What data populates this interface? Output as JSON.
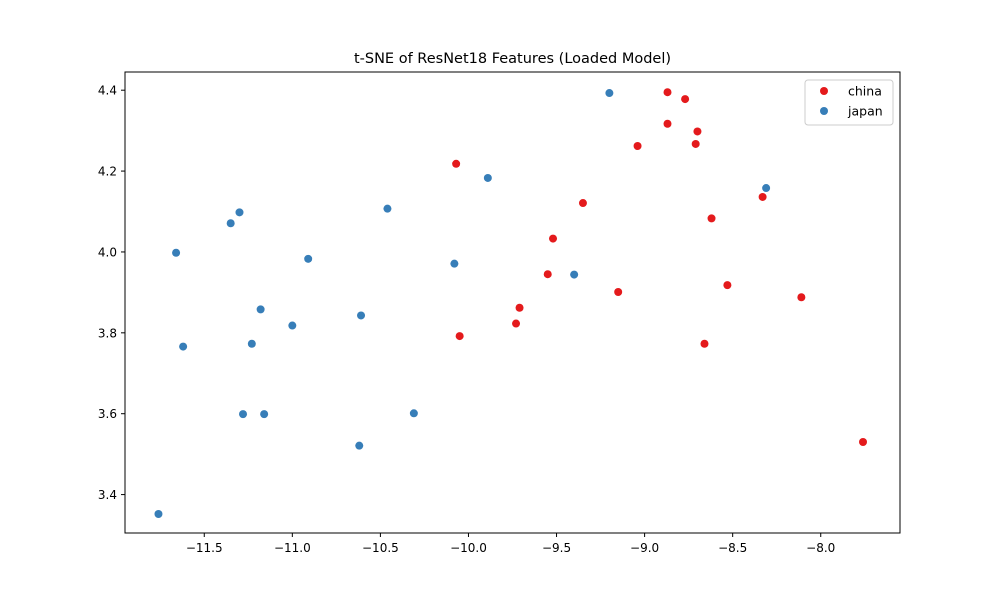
{
  "chart_data": {
    "type": "scatter",
    "title": "t-SNE of ResNet18 Features (Loaded Model)",
    "xlabel": "",
    "ylabel": "",
    "xlim": [
      -11.95,
      -7.55
    ],
    "ylim": [
      3.305,
      4.445
    ],
    "xticks": [
      -11.5,
      -11.0,
      -10.5,
      -10.0,
      -9.5,
      -9.0,
      -8.5,
      -8.0
    ],
    "xtick_labels": [
      "−11.5",
      "−11.0",
      "−10.5",
      "−10.0",
      "−9.5",
      "−9.0",
      "−8.5",
      "−8.0"
    ],
    "yticks": [
      3.4,
      3.6,
      3.8,
      4.0,
      4.2,
      4.4
    ],
    "ytick_labels": [
      "3.4",
      "3.6",
      "3.8",
      "4.0",
      "4.2",
      "4.4"
    ],
    "grid": false,
    "legend_position": "top-right",
    "series": [
      {
        "name": "china",
        "color": "#e41a1c",
        "points": [
          [
            -8.87,
            4.395
          ],
          [
            -8.77,
            4.378
          ],
          [
            -8.87,
            4.317
          ],
          [
            -8.7,
            4.298
          ],
          [
            -8.71,
            4.267
          ],
          [
            -9.04,
            4.262
          ],
          [
            -10.07,
            4.218
          ],
          [
            -9.35,
            4.121
          ],
          [
            -8.33,
            4.136
          ],
          [
            -8.62,
            4.083
          ],
          [
            -9.52,
            4.033
          ],
          [
            -9.55,
            3.945
          ],
          [
            -8.53,
            3.918
          ],
          [
            -9.15,
            3.901
          ],
          [
            -8.11,
            3.888
          ],
          [
            -9.71,
            3.862
          ],
          [
            -9.73,
            3.823
          ],
          [
            -10.05,
            3.792
          ],
          [
            -8.66,
            3.773
          ],
          [
            -7.76,
            3.53
          ]
        ]
      },
      {
        "name": "japan",
        "color": "#377eb8",
        "points": [
          [
            -9.2,
            4.393
          ],
          [
            -9.89,
            4.183
          ],
          [
            -8.31,
            4.158
          ],
          [
            -10.46,
            4.107
          ],
          [
            -11.3,
            4.098
          ],
          [
            -11.35,
            4.071
          ],
          [
            -11.66,
            3.998
          ],
          [
            -10.91,
            3.983
          ],
          [
            -10.08,
            3.971
          ],
          [
            -9.4,
            3.944
          ],
          [
            -11.18,
            3.858
          ],
          [
            -10.61,
            3.843
          ],
          [
            -11.0,
            3.818
          ],
          [
            -11.23,
            3.773
          ],
          [
            -11.62,
            3.766
          ],
          [
            -11.28,
            3.599
          ],
          [
            -11.16,
            3.599
          ],
          [
            -10.31,
            3.601
          ],
          [
            -10.62,
            3.521
          ],
          [
            -11.76,
            3.352
          ]
        ]
      }
    ]
  }
}
